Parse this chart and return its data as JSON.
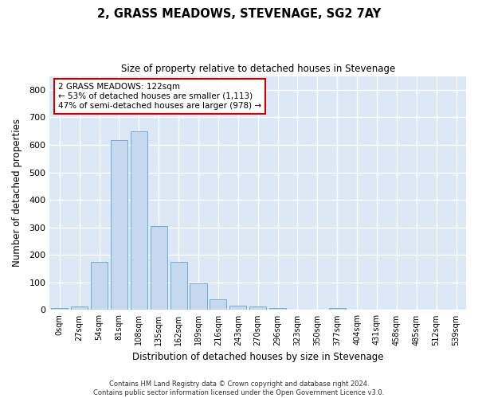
{
  "title": "2, GRASS MEADOWS, STEVENAGE, SG2 7AY",
  "subtitle": "Size of property relative to detached houses in Stevenage",
  "xlabel": "Distribution of detached houses by size in Stevenage",
  "ylabel": "Number of detached properties",
  "bar_color": "#c5d8ee",
  "bar_edge_color": "#6aaed6",
  "background_color": "#dce8f5",
  "grid_color": "#ffffff",
  "fig_background": "#ffffff",
  "categories": [
    "0sqm",
    "27sqm",
    "54sqm",
    "81sqm",
    "108sqm",
    "135sqm",
    "162sqm",
    "189sqm",
    "216sqm",
    "243sqm",
    "270sqm",
    "296sqm",
    "323sqm",
    "350sqm",
    "377sqm",
    "404sqm",
    "431sqm",
    "458sqm",
    "485sqm",
    "512sqm",
    "539sqm"
  ],
  "values": [
    8,
    13,
    175,
    618,
    650,
    305,
    175,
    98,
    40,
    15,
    12,
    8,
    0,
    0,
    7,
    0,
    0,
    0,
    0,
    0,
    0
  ],
  "ylim": [
    0,
    850
  ],
  "yticks": [
    0,
    100,
    200,
    300,
    400,
    500,
    600,
    700,
    800
  ],
  "annotation_line1": "2 GRASS MEADOWS: 122sqm",
  "annotation_line2": "← 53% of detached houses are smaller (1,113)",
  "annotation_line3": "47% of semi-detached houses are larger (978) →",
  "annotation_box_color": "#ffffff",
  "annotation_box_edge": "#cc0000",
  "footer_line1": "Contains HM Land Registry data © Crown copyright and database right 2024.",
  "footer_line2": "Contains public sector information licensed under the Open Government Licence v3.0."
}
